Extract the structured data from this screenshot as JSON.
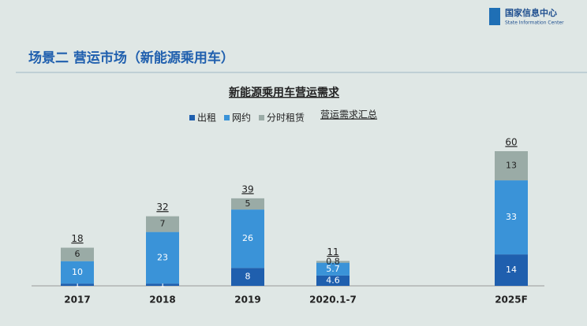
{
  "header": {
    "title": "场景二  营运市场（新能源乘用车）",
    "logo_cn": "国家信息中心",
    "logo_en": "State Information Center"
  },
  "chart_data": {
    "type": "stacked_bar",
    "title": "新能源乘用车营运需求",
    "categories": [
      "2017",
      "2018",
      "2019",
      "2020.1-7",
      null,
      "2025F"
    ],
    "series": [
      {
        "name": "出租",
        "color": "#1f5fae",
        "values": [
          1,
          1,
          8,
          4.6,
          null,
          14
        ]
      },
      {
        "name": "网约",
        "color": "#3a93d8",
        "values": [
          10,
          23,
          26,
          5.7,
          null,
          33
        ]
      },
      {
        "name": "分时租赁",
        "color": "#9aaba6",
        "values": [
          6,
          7,
          5,
          0.8,
          null,
          13
        ]
      }
    ],
    "total": {
      "name": "营运需求汇总",
      "values": [
        18,
        32,
        39,
        11,
        null,
        60
      ]
    }
  }
}
